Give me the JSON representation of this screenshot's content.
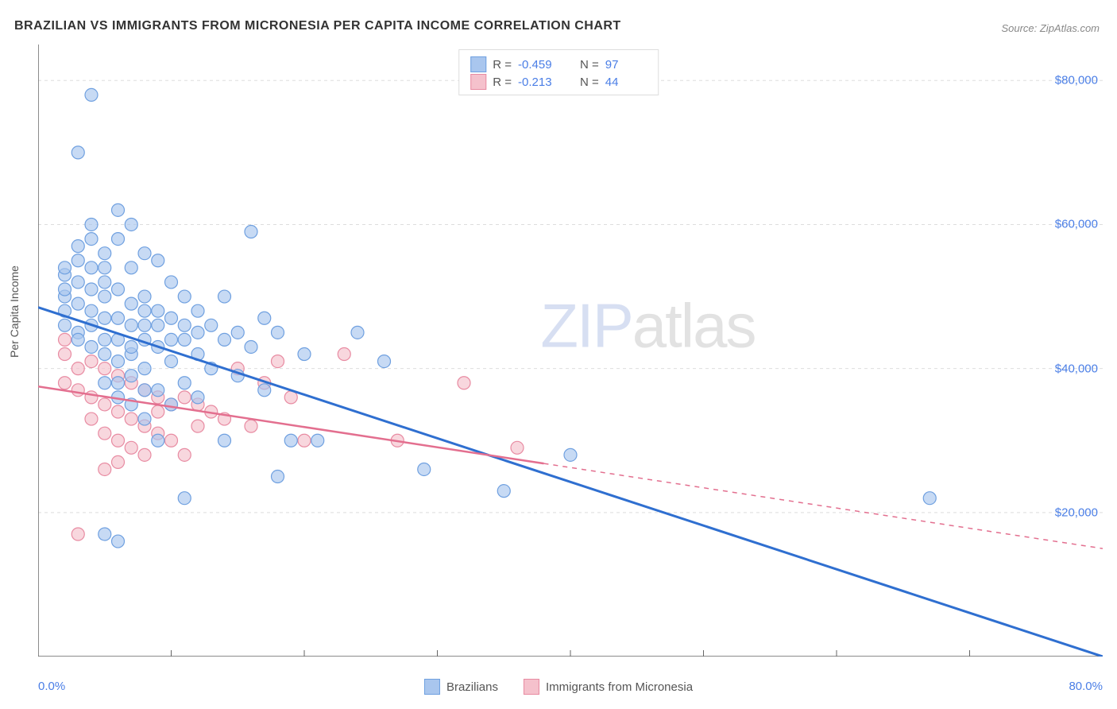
{
  "title": "BRAZILIAN VS IMMIGRANTS FROM MICRONESIA PER CAPITA INCOME CORRELATION CHART",
  "source": "Source: ZipAtlas.com",
  "ylabel": "Per Capita Income",
  "watermark_a": "ZIP",
  "watermark_b": "atlas",
  "chart": {
    "type": "scatter-with-regression",
    "background_color": "#ffffff",
    "grid_color": "#dddddd",
    "axis_color": "#666666",
    "x": {
      "min": 0,
      "max": 80,
      "unit": "%",
      "label_min": "0.0%",
      "label_max": "80.0%",
      "ticks_minor": [
        10,
        20,
        30,
        40,
        50,
        60,
        70
      ]
    },
    "y": {
      "min": 0,
      "max": 85000,
      "unit": "$",
      "ticks": [
        20000,
        40000,
        60000,
        80000
      ],
      "tick_labels": [
        "$20,000",
        "$40,000",
        "$60,000",
        "$80,000"
      ]
    },
    "series": [
      {
        "name": "Brazilians",
        "marker_fill": "#a9c6ee",
        "marker_stroke": "#6fa0e0",
        "marker_opacity": 0.65,
        "marker_radius": 8,
        "line_color": "#2f6fd0",
        "line_width": 3,
        "R": "-0.459",
        "N": "97",
        "regression": {
          "y_at_x0": 48500,
          "y_at_x80": 0,
          "solid_until_x": 80
        },
        "points": [
          [
            2,
            53000
          ],
          [
            2,
            54000
          ],
          [
            2,
            50000
          ],
          [
            2,
            48000
          ],
          [
            3,
            52000
          ],
          [
            3,
            57000
          ],
          [
            3,
            45000
          ],
          [
            3,
            70000
          ],
          [
            4,
            60000
          ],
          [
            4,
            54000
          ],
          [
            4,
            48000
          ],
          [
            4,
            43000
          ],
          [
            4,
            78000
          ],
          [
            5,
            56000
          ],
          [
            5,
            52000
          ],
          [
            5,
            47000
          ],
          [
            5,
            42000
          ],
          [
            5,
            17000
          ],
          [
            6,
            62000
          ],
          [
            6,
            58000
          ],
          [
            6,
            51000
          ],
          [
            6,
            44000
          ],
          [
            6,
            38000
          ],
          [
            6,
            16000
          ],
          [
            7,
            60000
          ],
          [
            7,
            54000
          ],
          [
            7,
            49000
          ],
          [
            7,
            42000
          ],
          [
            7,
            35000
          ],
          [
            8,
            56000
          ],
          [
            8,
            50000
          ],
          [
            8,
            46000
          ],
          [
            8,
            40000
          ],
          [
            8,
            33000
          ],
          [
            9,
            55000
          ],
          [
            9,
            48000
          ],
          [
            9,
            43000
          ],
          [
            9,
            37000
          ],
          [
            9,
            30000
          ],
          [
            10,
            52000
          ],
          [
            10,
            47000
          ],
          [
            10,
            41000
          ],
          [
            10,
            35000
          ],
          [
            11,
            50000
          ],
          [
            11,
            44000
          ],
          [
            11,
            38000
          ],
          [
            11,
            22000
          ],
          [
            12,
            48000
          ],
          [
            12,
            42000
          ],
          [
            12,
            36000
          ],
          [
            13,
            46000
          ],
          [
            13,
            40000
          ],
          [
            14,
            50000
          ],
          [
            14,
            44000
          ],
          [
            14,
            30000
          ],
          [
            15,
            45000
          ],
          [
            15,
            39000
          ],
          [
            16,
            59000
          ],
          [
            16,
            43000
          ],
          [
            17,
            47000
          ],
          [
            17,
            37000
          ],
          [
            18,
            45000
          ],
          [
            18,
            25000
          ],
          [
            19,
            30000
          ],
          [
            20,
            42000
          ],
          [
            21,
            30000
          ],
          [
            24,
            45000
          ],
          [
            26,
            41000
          ],
          [
            29,
            26000
          ],
          [
            35,
            23000
          ],
          [
            40,
            28000
          ],
          [
            67,
            22000
          ],
          [
            2,
            46000
          ],
          [
            3,
            49000
          ],
          [
            4,
            51000
          ],
          [
            5,
            50000
          ],
          [
            6,
            47000
          ],
          [
            7,
            46000
          ],
          [
            8,
            44000
          ],
          [
            3,
            55000
          ],
          [
            4,
            58000
          ],
          [
            5,
            44000
          ],
          [
            6,
            41000
          ],
          [
            7,
            39000
          ],
          [
            8,
            48000
          ],
          [
            9,
            46000
          ],
          [
            10,
            44000
          ],
          [
            11,
            46000
          ],
          [
            12,
            45000
          ],
          [
            5,
            38000
          ],
          [
            6,
            36000
          ],
          [
            7,
            43000
          ],
          [
            8,
            37000
          ],
          [
            4,
            46000
          ],
          [
            3,
            44000
          ],
          [
            2,
            51000
          ],
          [
            5,
            54000
          ]
        ]
      },
      {
        "name": "Immigrants from Micronesia",
        "marker_fill": "#f5c1cc",
        "marker_stroke": "#e88ba2",
        "marker_opacity": 0.65,
        "marker_radius": 8,
        "line_color": "#e36f8f",
        "line_width": 2.5,
        "R": "-0.213",
        "N": "44",
        "regression": {
          "y_at_x0": 37500,
          "y_at_x80": 15000,
          "solid_until_x": 38
        },
        "points": [
          [
            2,
            42000
          ],
          [
            2,
            44000
          ],
          [
            2,
            38000
          ],
          [
            3,
            17000
          ],
          [
            3,
            40000
          ],
          [
            3,
            37000
          ],
          [
            4,
            41000
          ],
          [
            4,
            36000
          ],
          [
            4,
            33000
          ],
          [
            5,
            40000
          ],
          [
            5,
            35000
          ],
          [
            5,
            31000
          ],
          [
            5,
            26000
          ],
          [
            6,
            39000
          ],
          [
            6,
            34000
          ],
          [
            6,
            30000
          ],
          [
            6,
            27000
          ],
          [
            7,
            38000
          ],
          [
            7,
            33000
          ],
          [
            7,
            29000
          ],
          [
            8,
            37000
          ],
          [
            8,
            32000
          ],
          [
            8,
            28000
          ],
          [
            9,
            36000
          ],
          [
            9,
            34000
          ],
          [
            9,
            31000
          ],
          [
            10,
            35000
          ],
          [
            10,
            30000
          ],
          [
            11,
            36000
          ],
          [
            11,
            28000
          ],
          [
            12,
            35000
          ],
          [
            12,
            32000
          ],
          [
            13,
            34000
          ],
          [
            14,
            33000
          ],
          [
            15,
            40000
          ],
          [
            16,
            32000
          ],
          [
            17,
            38000
          ],
          [
            18,
            41000
          ],
          [
            19,
            36000
          ],
          [
            20,
            30000
          ],
          [
            23,
            42000
          ],
          [
            27,
            30000
          ],
          [
            32,
            38000
          ],
          [
            36,
            29000
          ]
        ]
      }
    ],
    "stat_legend_labels": {
      "R": "R =",
      "N": "N ="
    },
    "bottom_legend_labels": [
      "Brazilians",
      "Immigrants from Micronesia"
    ]
  }
}
